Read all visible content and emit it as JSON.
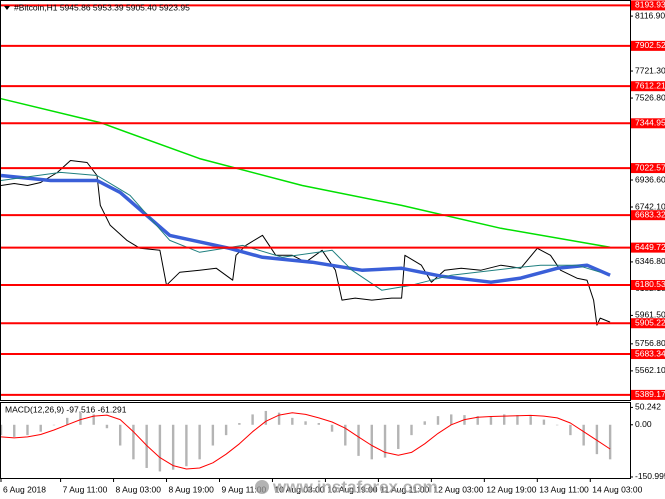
{
  "chart_data": [
    {
      "type": "line",
      "title": "#Bitcoin,H1  5945.86 5953.39 5905.40 5923.95",
      "xlim": [
        0,
        190
      ],
      "ylim": [
        5352.4,
        8225.6
      ],
      "yticks": [
        {
          "value": 8116.9,
          "label": "8116.90"
        },
        {
          "value": 7721.3,
          "label": "7721.30"
        },
        {
          "value": 7526.8,
          "label": "7526.80"
        },
        {
          "value": 6936.6,
          "label": "6936.60"
        },
        {
          "value": 6742.1,
          "label": "6742.10"
        },
        {
          "value": 6346.8,
          "label": "6346.80"
        },
        {
          "value": 6152.1,
          "label": "6152.10"
        },
        {
          "value": 5961.5,
          "label": "5961.50"
        },
        {
          "value": 5756.8,
          "label": "5756.80"
        },
        {
          "value": 5562.1,
          "label": "5562.10"
        }
      ],
      "xticks": [
        {
          "value": 0,
          "label": "6 Aug 2018"
        },
        {
          "value": 18,
          "label": "7 Aug 11:00"
        },
        {
          "value": 34,
          "label": "8 Aug 03:00"
        },
        {
          "value": 50,
          "label": "8 Aug 19:00"
        },
        {
          "value": 66,
          "label": "9 Aug 11:00"
        },
        {
          "value": 82,
          "label": "10 Aug 03:00"
        },
        {
          "value": 98,
          "label": "10 Aug 19:00"
        },
        {
          "value": 114,
          "label": "11 Aug 11:00"
        },
        {
          "value": 130,
          "label": "12 Aug 03:00"
        },
        {
          "value": 146,
          "label": "12 Aug 19:00"
        },
        {
          "value": 162,
          "label": "13 Aug 11:00"
        },
        {
          "value": 178,
          "label": "14 Aug 03:00"
        }
      ],
      "levels": [
        8193.93,
        7902.52,
        7612.21,
        7344.95,
        7022.57,
        6683.32,
        6449.72,
        6180.53,
        5905.22,
        5683.34,
        5389.17
      ],
      "level_color": "#ff0000",
      "series": [
        {
          "color": "#000000",
          "width": 1,
          "x": [
            0,
            4,
            8,
            12,
            17,
            21,
            26,
            29,
            30,
            33,
            38,
            42,
            48,
            50,
            54,
            60,
            65,
            70,
            71,
            74,
            79,
            83,
            88,
            92,
            97,
            101,
            103,
            107,
            112,
            118,
            121,
            122,
            127,
            130,
            134,
            139,
            145,
            151,
            157,
            162,
            166,
            169,
            174,
            177,
            179,
            180,
            181,
            184
          ],
          "values": [
            6897.3,
            6911.7,
            6897.3,
            6918.8,
            6990.6,
            7076.8,
            7062.4,
            6969.1,
            6753.7,
            6610.1,
            6502.4,
            6445.0,
            6430.6,
            6179.3,
            6272.8,
            6287.0,
            6301.4,
            6215.2,
            6394.7,
            6466.5,
            6538.3,
            6394.7,
            6394.7,
            6344.4,
            6430.6,
            6287.0,
            6071.6,
            6085.9,
            6071.6,
            6085.9,
            6085.9,
            6394.7,
            6322.9,
            6200.8,
            6287.0,
            6301.4,
            6287.0,
            6322.9,
            6301.4,
            6445.0,
            6394.7,
            6287.0,
            6229.6,
            6215.2,
            6071.6,
            5892.1,
            5942.4,
            5913.6
          ]
        },
        {
          "color": "#00e000",
          "width": 1.5,
          "x": [
            0,
            30,
            60,
            91,
            121,
            151,
            184
          ],
          "values": [
            7522.0,
            7349.6,
            7091.0,
            6897.0,
            6754.0,
            6588.6,
            6452.0
          ]
        },
        {
          "color": "#3a5fd8",
          "width": 3.5,
          "x": [
            0,
            15,
            29,
            36,
            51,
            69,
            79,
            94,
            109,
            121,
            133,
            148,
            157,
            168,
            177,
            184
          ],
          "values": [
            6969.0,
            6933.0,
            6933.0,
            6847.0,
            6538.0,
            6445.0,
            6380.0,
            6345.0,
            6287.0,
            6301.0,
            6244.0,
            6200.8,
            6230.0,
            6301.0,
            6323.0,
            6251.0
          ]
        },
        {
          "color": "#1f7f7f",
          "width": 1,
          "x": [
            0,
            18,
            29,
            39,
            51,
            60,
            73,
            85,
            100,
            106,
            115,
            124,
            136,
            154,
            163,
            174,
            181
          ],
          "values": [
            6933.0,
            6991.0,
            6969.0,
            6826.0,
            6502.0,
            6416.0,
            6466.0,
            6380.0,
            6431.0,
            6287.0,
            6143.0,
            6179.0,
            6251.0,
            6301.0,
            6323.0,
            6323.0,
            6273.0
          ]
        }
      ],
      "watermark": "www.instaforex.com"
    },
    {
      "type": "macd",
      "title": "MACD(12,26,9) -97.516 -61.291",
      "xlim": [
        0,
        190
      ],
      "ylim": [
        -154,
        63
      ],
      "yticks": [
        50.242,
        {
          "value": 0,
          "label": "0.00"
        },
        -150.995
      ],
      "x": [
        0,
        4,
        8,
        12,
        16,
        20,
        24,
        28,
        32,
        36,
        40,
        44,
        48,
        52,
        56,
        60,
        64,
        68,
        72,
        76,
        80,
        84,
        88,
        92,
        96,
        100,
        104,
        108,
        112,
        116,
        120,
        124,
        128,
        132,
        136,
        140,
        144,
        148,
        152,
        156,
        160,
        164,
        168,
        172,
        176,
        180,
        184
      ],
      "series": [
        {
          "style": "histogram",
          "color": "#b4b4b4",
          "values": [
            -30,
            -35,
            -30,
            -20,
            0,
            20,
            35,
            30,
            -10,
            -60,
            -100,
            -125,
            -135,
            -130,
            -120,
            -100,
            -60,
            -30,
            5,
            30,
            40,
            35,
            20,
            10,
            5,
            -20,
            -60,
            -90,
            -100,
            -95,
            -70,
            -30,
            10,
            25,
            30,
            28,
            25,
            25,
            30,
            28,
            25,
            15,
            0,
            -30,
            -60,
            -85,
            -100
          ]
        },
        {
          "style": "line",
          "color": "#ff0000",
          "values": [
            -35,
            -38,
            -35,
            -28,
            -15,
            0,
            15,
            25,
            28,
            15,
            -20,
            -60,
            -95,
            -118,
            -128,
            -125,
            -110,
            -85,
            -55,
            -20,
            10,
            28,
            35,
            30,
            20,
            8,
            -10,
            -35,
            -60,
            -80,
            -88,
            -80,
            -55,
            -25,
            0,
            15,
            22,
            24,
            25,
            26,
            27,
            25,
            20,
            5,
            -20,
            -45,
            -70
          ]
        }
      ]
    }
  ]
}
